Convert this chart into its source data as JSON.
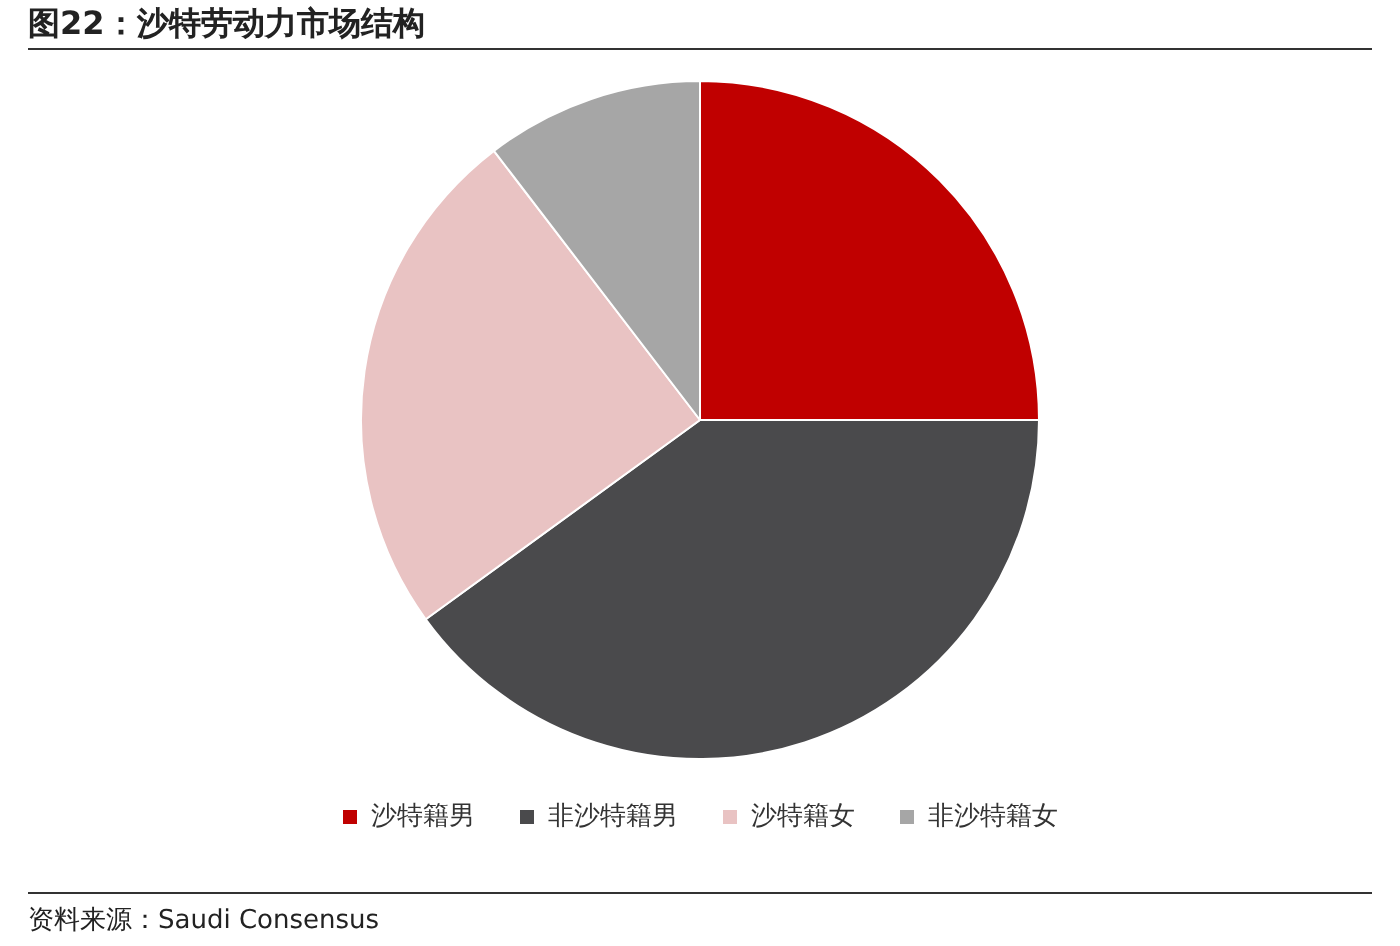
{
  "chart_data": {
    "type": "pie",
    "title": "图22：沙特劳动力市场结构",
    "categories": [
      "沙特籍男",
      "非沙特籍男",
      "沙特籍女",
      "非沙特籍女"
    ],
    "values": [
      25,
      40,
      24.6,
      10.4
    ],
    "colors": [
      "#c00000",
      "#4a4a4c",
      "#e9c3c3",
      "#a6a6a6"
    ],
    "legend": "bottom",
    "annotations": [
      "资料来源：Saudi Consensus"
    ]
  }
}
